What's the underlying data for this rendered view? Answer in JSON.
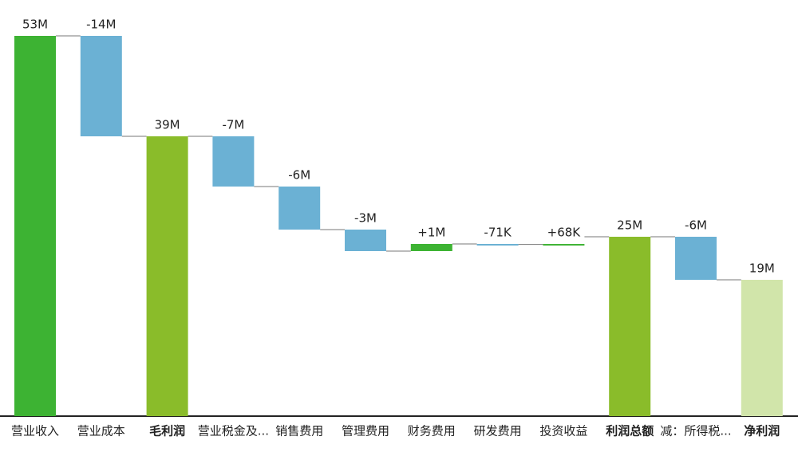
{
  "chart_data": {
    "type": "waterfall",
    "categories": [
      "营业收入",
      "营业成本",
      "毛利润",
      "营业税金及...",
      "销售费用",
      "管理费用",
      "财务费用",
      "研发费用",
      "投资收益",
      "利润总额",
      "减：所得税...",
      "净利润"
    ],
    "values": [
      53000000,
      -14000000,
      39000000,
      -7000000,
      -6000000,
      -3000000,
      1000000,
      -71000,
      68000,
      25000000,
      -6000000,
      19000000
    ],
    "value_labels": [
      "53M",
      "-14M",
      "39M",
      "-7M",
      "-6M",
      "-3M",
      "+1M",
      "-71K",
      "+68K",
      "25M",
      "-6M",
      "19M"
    ],
    "is_total": [
      true,
      false,
      true,
      false,
      false,
      false,
      false,
      false,
      false,
      true,
      false,
      true
    ],
    "label_bold": [
      false,
      false,
      true,
      false,
      false,
      false,
      false,
      false,
      false,
      true,
      false,
      true
    ],
    "colors": [
      "#3db333",
      "#6bb1d4",
      "#8abc2a",
      "#6bb1d4",
      "#6bb1d4",
      "#6bb1d4",
      "#3db333",
      "#6bb1d4",
      "#3db333",
      "#8abc2a",
      "#6bb1d4",
      "#d1e5aa"
    ],
    "ylim": [
      0,
      58000000
    ]
  }
}
